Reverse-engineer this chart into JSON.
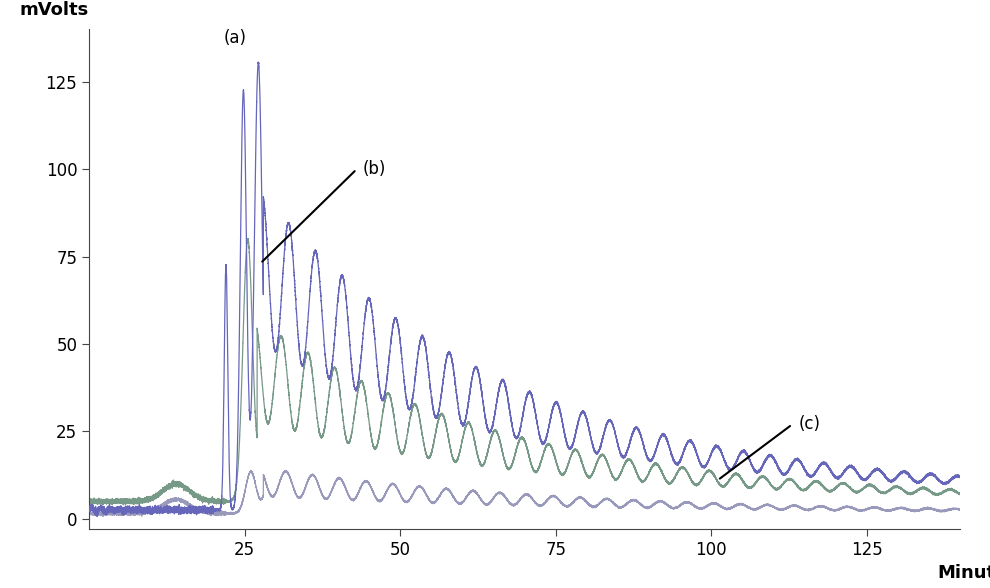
{
  "title": "",
  "xlabel": "Minutes",
  "ylabel": "mVolts",
  "xlim": [
    0,
    140
  ],
  "ylim": [
    -3,
    140
  ],
  "xticks": [
    25,
    50,
    75,
    100,
    125
  ],
  "yticks": [
    0,
    25,
    50,
    75,
    100,
    125
  ],
  "bg_color": "#ffffff",
  "curve_a_color": "#6666bb",
  "curve_b_color": "#779988",
  "curve_c_color": "#9999bb",
  "annotation_a": "(a)",
  "annotation_b": "(b)",
  "annotation_c": "(c)"
}
